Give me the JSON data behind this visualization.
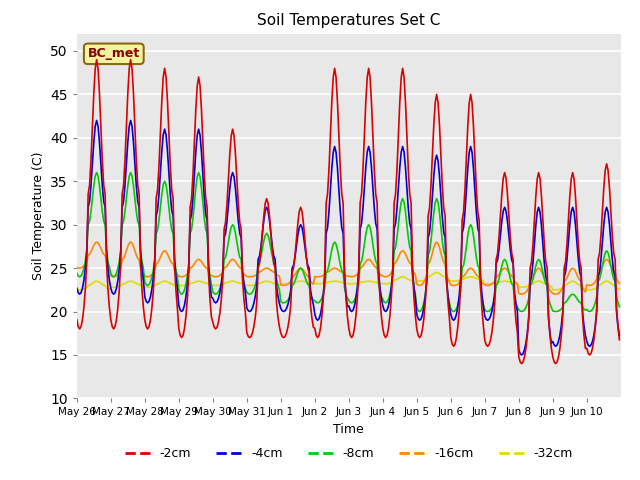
{
  "title": "Soil Temperatures Set C",
  "xlabel": "Time",
  "ylabel": "Soil Temperature (C)",
  "ylim": [
    10,
    52
  ],
  "yticks": [
    10,
    15,
    20,
    25,
    30,
    35,
    40,
    45,
    50
  ],
  "annotation": "BC_met",
  "background_color": "#e8e8e8",
  "series": {
    "-2cm": {
      "color": "#dd0000",
      "lw": 1.2
    },
    "-4cm": {
      "color": "#0000dd",
      "lw": 1.2
    },
    "-8cm": {
      "color": "#00cc00",
      "lw": 1.2
    },
    "-16cm": {
      "color": "#ff8800",
      "lw": 1.2
    },
    "-32cm": {
      "color": "#dddd00",
      "lw": 1.2
    }
  },
  "x_tick_labels": [
    "May 26",
    "May 27",
    "May 28",
    "May 29",
    "May 30",
    "May 31",
    "Jun 1",
    "Jun 2",
    "Jun 3",
    "Jun 4",
    "Jun 5",
    "Jun 6",
    "Jun 7",
    "Jun 8",
    "Jun 9",
    "Jun 10"
  ],
  "days": 16,
  "pts_per_day": 24,
  "peaks_2cm": [
    49,
    49,
    48,
    47,
    41,
    33,
    32,
    48,
    48,
    48,
    45,
    45,
    36,
    36,
    36,
    37
  ],
  "troughs_2cm": [
    18,
    18,
    18,
    17,
    18,
    17,
    17,
    17,
    17,
    17,
    17,
    16,
    16,
    14,
    14,
    15
  ],
  "peaks_4cm": [
    42,
    42,
    41,
    41,
    36,
    32,
    30,
    39,
    39,
    39,
    38,
    39,
    32,
    32,
    32,
    32
  ],
  "troughs_4cm": [
    22,
    22,
    21,
    20,
    21,
    20,
    20,
    19,
    20,
    20,
    19,
    19,
    19,
    15,
    16,
    16
  ],
  "peaks_8cm": [
    36,
    36,
    35,
    36,
    30,
    29,
    25,
    28,
    30,
    33,
    33,
    30,
    26,
    26,
    22,
    27
  ],
  "troughs_8cm": [
    24,
    24,
    23,
    22,
    22,
    22,
    21,
    21,
    21,
    21,
    20,
    20,
    20,
    20,
    20,
    20
  ],
  "peaks_16cm": [
    28,
    28,
    27,
    26,
    26,
    25,
    25,
    25,
    26,
    27,
    28,
    25,
    25,
    25,
    25,
    26
  ],
  "troughs_16cm": [
    25,
    24,
    24,
    24,
    24,
    24,
    23,
    24,
    24,
    24,
    23,
    23,
    23,
    22,
    22,
    23
  ],
  "peaks_32cm": [
    23.5,
    23.5,
    23.5,
    23.5,
    23.5,
    23.5,
    23.5,
    23.5,
    23.5,
    24.0,
    24.5,
    24.0,
    23.5,
    23.5,
    23.5,
    23.5
  ],
  "troughs_32cm": [
    22.5,
    22.8,
    22.8,
    23.0,
    23.0,
    23.0,
    23.2,
    23.2,
    23.2,
    23.2,
    23.5,
    23.5,
    23.2,
    22.8,
    22.5,
    22.5
  ]
}
